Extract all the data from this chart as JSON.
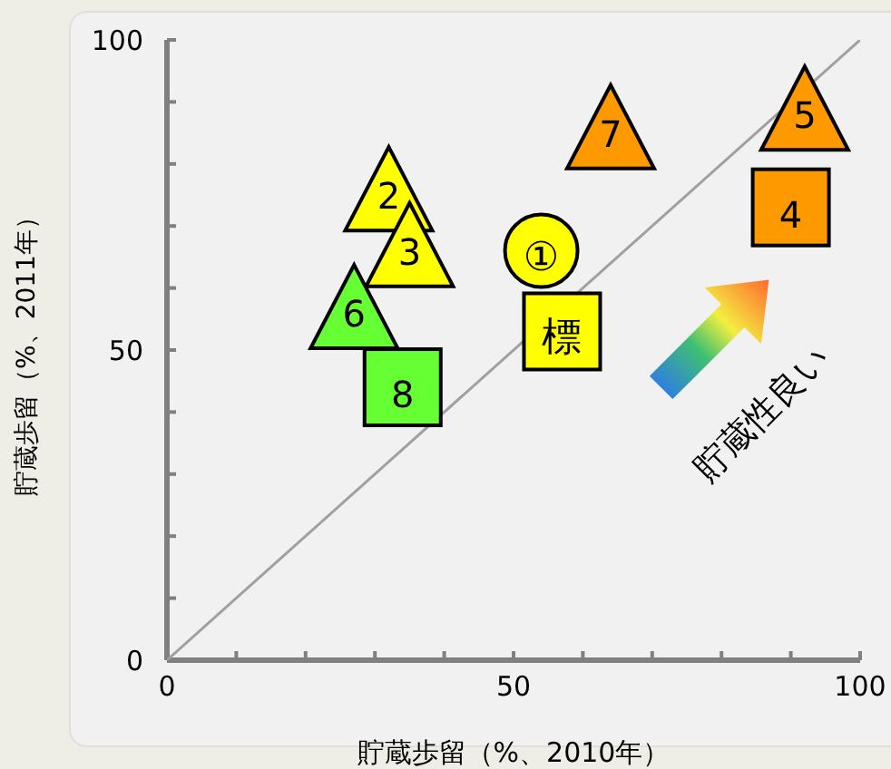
{
  "chart_data": {
    "type": "scatter",
    "xlabel": "貯蔵歩留（%、2010年）",
    "ylabel": "貯蔵歩留（%、2011年）",
    "xlim": [
      0,
      100
    ],
    "ylim": [
      0,
      100
    ],
    "xticks": [
      0,
      {
        "value": 10,
        "label": null
      },
      {
        "value": 20,
        "label": null
      },
      {
        "value": 30,
        "label": null
      },
      {
        "value": 40,
        "label": null
      },
      50,
      {
        "value": 60,
        "label": null
      },
      {
        "value": 70,
        "label": null
      },
      {
        "value": 80,
        "label": null
      },
      {
        "value": 90,
        "label": null
      },
      100
    ],
    "yticks": [
      0,
      {
        "value": 10,
        "label": null
      },
      {
        "value": 20,
        "label": null
      },
      {
        "value": 30,
        "label": null
      },
      {
        "value": 40,
        "label": null
      },
      50,
      {
        "value": 60,
        "label": null
      },
      {
        "value": 70,
        "label": null
      },
      {
        "value": 80,
        "label": null
      },
      {
        "value": 90,
        "label": null
      },
      100
    ],
    "grid": false,
    "legend": false,
    "series": [
      {
        "type": "line",
        "x": [
          0,
          100
        ],
        "values": [
          0,
          100
        ],
        "color": "#a0a0a0",
        "marker": "none"
      },
      {
        "x": [
          32,
          35
        ],
        "values": [
          76,
          67
        ],
        "color": "#ffff00",
        "marker": "triangle"
      },
      {
        "x": [
          27
        ],
        "values": [
          57
        ],
        "color": "#66ff33",
        "marker": "triangle"
      },
      {
        "x": [
          34
        ],
        "values": [
          44
        ],
        "color": "#66ff33",
        "marker": "square"
      },
      {
        "x": [
          64,
          92
        ],
        "values": [
          86,
          89
        ],
        "color": "#ff9900",
        "marker": "triangle"
      },
      {
        "x": [
          90
        ],
        "values": [
          73
        ],
        "color": "#ff9900",
        "marker": "square"
      },
      {
        "x": [
          54
        ],
        "values": [
          66
        ],
        "color": "#ffff00",
        "marker": "circle"
      },
      {
        "x": [
          57
        ],
        "values": [
          53
        ],
        "color": "#ffff00",
        "marker": "square"
      }
    ],
    "annotations": [
      {
        "text": "2",
        "x": 32,
        "y": 76
      },
      {
        "text": "3",
        "x": 35,
        "y": 67
      },
      {
        "text": "6",
        "x": 27,
        "y": 57
      },
      {
        "text": "8",
        "x": 34,
        "y": 44
      },
      {
        "text": "7",
        "x": 64,
        "y": 86
      },
      {
        "text": "5",
        "x": 92,
        "y": 89
      },
      {
        "text": "4",
        "x": 90,
        "y": 73
      },
      {
        "text": "①",
        "x": 54,
        "y": 66
      },
      {
        "text": "標",
        "x": 57,
        "y": 53
      },
      "貯蔵性良い"
    ]
  }
}
